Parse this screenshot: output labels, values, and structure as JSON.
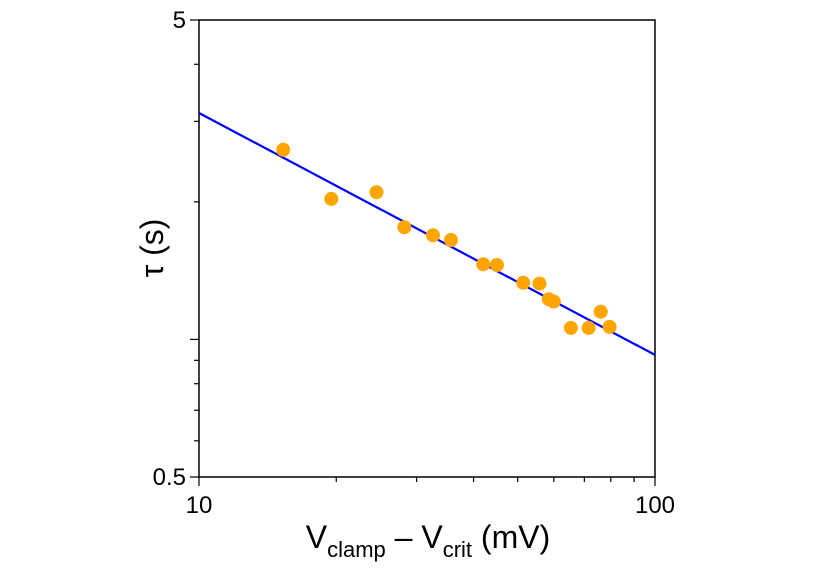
{
  "chart_data": {
    "type": "scatter",
    "title": "",
    "xlabel": {
      "main": "V",
      "sub1": "clamp",
      "mid": " – V",
      "sub2": "crit",
      "tail": " (mV)"
    },
    "ylabel": "τ (s)",
    "x_scale": "log",
    "y_scale": "log",
    "xlim": [
      10,
      100
    ],
    "ylim": [
      0.5,
      5
    ],
    "x_tick_labels": [
      {
        "value": 10,
        "label": "10"
      },
      {
        "value": 100,
        "label": "100"
      }
    ],
    "y_tick_labels": [
      {
        "value": 0.5,
        "label": "0.5"
      },
      {
        "value": 5,
        "label": "5"
      }
    ],
    "grid": false,
    "series": [
      {
        "kind": "points",
        "color": "#FFA500",
        "x": [
          15.3,
          19.5,
          24.5,
          28.2,
          32.6,
          35.7,
          42.0,
          45.0,
          51.4,
          55.8,
          58.5,
          60.0,
          65.4,
          71.5,
          76.0,
          79.5
        ],
        "y": [
          2.6,
          2.03,
          2.1,
          1.76,
          1.69,
          1.65,
          1.46,
          1.455,
          1.33,
          1.325,
          1.225,
          1.21,
          1.06,
          1.06,
          1.15,
          1.065
        ]
      },
      {
        "kind": "fit-line",
        "color": "#0000FF",
        "x": [
          10,
          100
        ],
        "y": [
          3.13,
          0.925
        ]
      }
    ]
  }
}
